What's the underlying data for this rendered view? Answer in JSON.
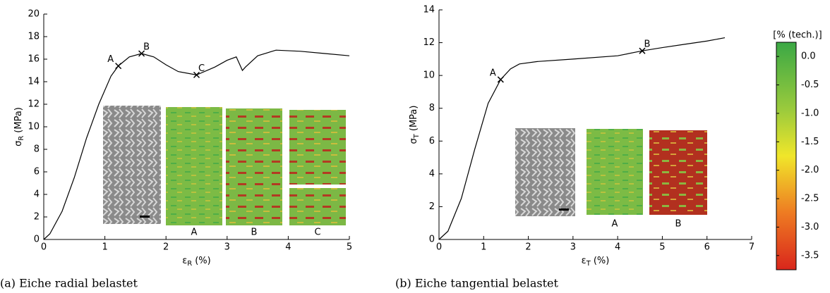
{
  "chart_data": [
    {
      "type": "line",
      "color": "#000000",
      "x_label": {
        "symbol": "ε",
        "subscript": "R",
        "unit": "(%)"
      },
      "y_label": {
        "symbol": "σ",
        "subscript": "R",
        "unit": "(MPa)"
      },
      "caption": "(a) Eiche radial belastet",
      "xlim": [
        0,
        5
      ],
      "ylim": [
        0,
        20
      ],
      "xticks": [
        0,
        1,
        2,
        3,
        4,
        5
      ],
      "yticks": [
        0,
        2,
        4,
        6,
        8,
        10,
        12,
        14,
        16,
        18,
        20
      ],
      "x": [
        0,
        0.1,
        0.3,
        0.5,
        0.7,
        0.9,
        1.1,
        1.22,
        1.4,
        1.6,
        1.8,
        2.0,
        2.2,
        2.5,
        2.8,
        3.0,
        3.15,
        3.2,
        3.25,
        3.3,
        3.5,
        3.8,
        4.2,
        4.6,
        5.0
      ],
      "values": [
        0,
        0.5,
        2.5,
        5.5,
        9,
        12,
        14.5,
        15.4,
        16.2,
        16.5,
        16.2,
        15.5,
        14.9,
        14.6,
        15.3,
        15.9,
        16.2,
        15.6,
        15.0,
        15.3,
        16.3,
        16.8,
        16.7,
        16.5,
        16.3
      ],
      "markers": {
        "x": [
          1.22,
          1.6,
          2.5
        ],
        "values": [
          15.4,
          16.5,
          14.6
        ],
        "labels": [
          "A",
          "B",
          "C"
        ]
      },
      "inset_labels": [
        "A",
        "B",
        "C"
      ]
    },
    {
      "type": "line",
      "color": "#000000",
      "x_label": {
        "symbol": "ε",
        "subscript": "T",
        "unit": "(%)"
      },
      "y_label": {
        "symbol": "σ",
        "subscript": "T",
        "unit": "(MPa)"
      },
      "caption": "(b) Eiche tangential belastet",
      "xlim": [
        0,
        7
      ],
      "ylim": [
        0,
        14
      ],
      "xticks": [
        0,
        1,
        2,
        3,
        4,
        5,
        6,
        7
      ],
      "yticks": [
        0,
        2,
        4,
        6,
        8,
        10,
        12,
        14
      ],
      "x": [
        0,
        0.2,
        0.5,
        0.8,
        1.1,
        1.38,
        1.6,
        1.8,
        2.2,
        3.0,
        4.0,
        4.55,
        5.0,
        5.5,
        6.0,
        6.4
      ],
      "values": [
        0,
        0.5,
        2.5,
        5.5,
        8.3,
        9.75,
        10.4,
        10.7,
        10.85,
        11.0,
        11.2,
        11.5,
        11.7,
        11.9,
        12.1,
        12.3
      ],
      "markers": {
        "x": [
          1.38,
          4.55
        ],
        "values": [
          9.75,
          11.5
        ],
        "labels": [
          "A",
          "B"
        ]
      },
      "inset_labels": [
        "A",
        "B"
      ]
    }
  ],
  "colorbar": {
    "title": "[% (tech.)]",
    "clim": [
      -3.75,
      0.25
    ],
    "ticks": [
      {
        "value": 0,
        "label": "0.0"
      },
      -0.5,
      {
        "value": -1,
        "label": "-1.0"
      },
      -1.5,
      {
        "value": -2,
        "label": "-2.0"
      },
      -2.5,
      {
        "value": -3,
        "label": "-3.0"
      },
      -3.5
    ]
  }
}
